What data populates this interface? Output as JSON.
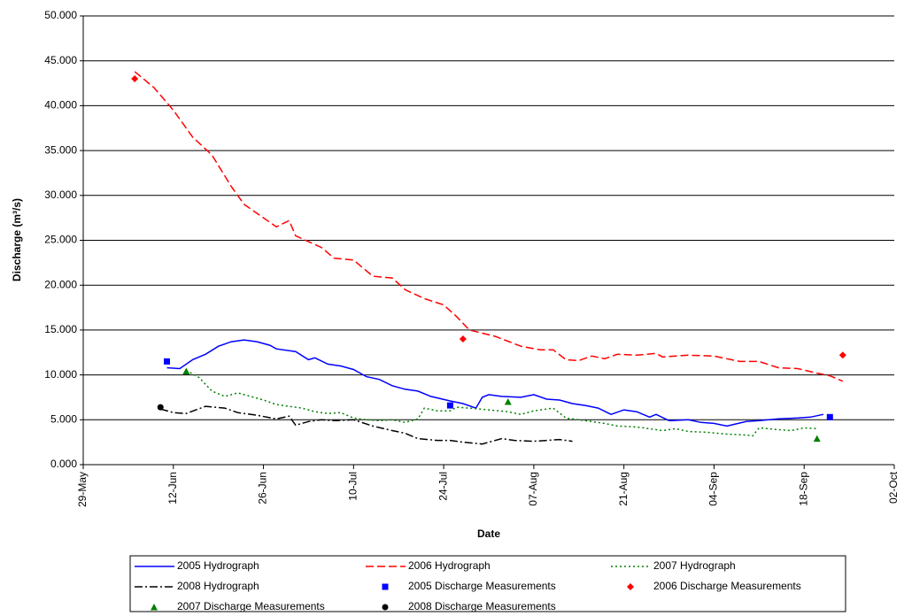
{
  "chart_data": {
    "type": "line",
    "y_label": "Discharge (m³/s)",
    "x_label": "Date",
    "xlim": [
      "29-May",
      "02-Oct"
    ],
    "xticks": [
      "29-May",
      "12-Jun",
      "26-Jun",
      "10-Jul",
      "24-Jul",
      "07-Aug",
      "21-Aug",
      "04-Sep",
      "18-Sep",
      "02-Oct"
    ],
    "ylim": [
      0,
      50
    ],
    "yticks": [
      {
        "value": 0,
        "label": "0.000"
      },
      {
        "value": 5,
        "label": "5.000"
      },
      {
        "value": 10,
        "label": "10.000"
      },
      {
        "value": 15,
        "label": "15.000"
      },
      {
        "value": 20,
        "label": "20.000"
      },
      {
        "value": 25,
        "label": "25.000"
      },
      {
        "value": 30,
        "label": "30.000"
      },
      {
        "value": 35,
        "label": "35.000"
      },
      {
        "value": 40,
        "label": "40.000"
      },
      {
        "value": 45,
        "label": "45.000"
      },
      {
        "value": 50,
        "label": "50.000"
      }
    ],
    "grid": true,
    "legend": "bottom",
    "series": [
      {
        "name": "2005 Hydrograph",
        "color": "#0000ff",
        "style": "solid",
        "x": [
          "11-Jun",
          "13-Jun",
          "15-Jun",
          "16-Jun",
          "17-Jun",
          "19-Jun",
          "21-Jun",
          "23-Jun",
          "25-Jun",
          "27-Jun",
          "28-Jun",
          "01-Jul",
          "03-Jul",
          "04-Jul",
          "06-Jul",
          "08-Jul",
          "10-Jul",
          "12-Jul",
          "14-Jul",
          "16-Jul",
          "18-Jul",
          "20-Jul",
          "22-Jul",
          "25-Jul",
          "27-Jul",
          "29-Jul",
          "30-Jul",
          "31-Jul",
          "02-Aug",
          "05-Aug",
          "07-Aug",
          "09-Aug",
          "11-Aug",
          "13-Aug",
          "15-Aug",
          "17-Aug",
          "19-Aug",
          "21-Aug",
          "23-Aug",
          "25-Aug",
          "26-Aug",
          "28-Aug",
          "31-Aug",
          "02-Sep",
          "04-Sep",
          "06-Sep",
          "09-Sep",
          "11-Sep",
          "14-Sep",
          "17-Sep",
          "19-Sep",
          "21-Sep"
        ],
        "values": [
          10.8,
          10.7,
          11.7,
          12.0,
          12.3,
          13.2,
          13.7,
          13.9,
          13.7,
          13.3,
          12.9,
          12.6,
          11.7,
          11.9,
          11.2,
          11.0,
          10.6,
          9.8,
          9.5,
          8.8,
          8.4,
          8.2,
          7.6,
          7.1,
          6.8,
          6.3,
          7.5,
          7.8,
          7.6,
          7.5,
          7.8,
          7.3,
          7.2,
          6.8,
          6.6,
          6.3,
          5.6,
          6.1,
          5.9,
          5.3,
          5.6,
          4.9,
          5.0,
          4.7,
          4.6,
          4.3,
          4.8,
          4.9,
          5.1,
          5.2,
          5.3,
          5.6
        ]
      },
      {
        "name": "2006 Hydrograph",
        "color": "#ff0000",
        "style": "dashed",
        "x": [
          "06-Jun",
          "09-Jun",
          "12-Jun",
          "13-Jun",
          "15-Jun",
          "18-Jun",
          "21-Jun",
          "23-Jun",
          "26-Jun",
          "28-Jun",
          "30-Jun",
          "01-Jul",
          "05-Jul",
          "07-Jul",
          "10-Jul",
          "13-Jul",
          "16-Jul",
          "18-Jul",
          "21-Jul",
          "24-Jul",
          "26-Jul",
          "28-Jul",
          "01-Aug",
          "05-Aug",
          "08-Aug",
          "10-Aug",
          "12-Aug",
          "14-Aug",
          "16-Aug",
          "18-Aug",
          "20-Aug",
          "23-Aug",
          "26-Aug",
          "27-Aug",
          "31-Aug",
          "04-Sep",
          "08-Sep",
          "11-Sep",
          "14-Sep",
          "17-Sep",
          "20-Sep",
          "22-Sep",
          "24-Sep"
        ],
        "values": [
          43.8,
          42.0,
          39.5,
          38.5,
          36.5,
          34.5,
          31.0,
          29.0,
          27.5,
          26.5,
          27.2,
          25.5,
          24.2,
          23.0,
          22.8,
          21.0,
          20.8,
          19.5,
          18.5,
          17.8,
          16.5,
          15.0,
          14.3,
          13.2,
          12.8,
          12.8,
          11.7,
          11.6,
          12.1,
          11.8,
          12.3,
          12.2,
          12.4,
          12.0,
          12.2,
          12.1,
          11.5,
          11.5,
          10.8,
          10.7,
          10.2,
          9.9,
          9.3
        ]
      },
      {
        "name": "2007 Hydrograph",
        "color": "#008000",
        "style": "dotted",
        "x": [
          "14-Jun",
          "16-Jun",
          "18-Jun",
          "20-Jun",
          "22-Jun",
          "24-Jun",
          "26-Jun",
          "28-Jun",
          "30-Jun",
          "02-Jul",
          "04-Jul",
          "06-Jul",
          "08-Jul",
          "10-Jul",
          "12-Jul",
          "14-Jul",
          "16-Jul",
          "18-Jul",
          "20-Jul",
          "21-Jul",
          "23-Jul",
          "25-Jul",
          "26-Jul",
          "28-Jul",
          "31-Jul",
          "03-Aug",
          "05-Aug",
          "07-Aug",
          "10-Aug",
          "12-Aug",
          "15-Aug",
          "18-Aug",
          "20-Aug",
          "23-Aug",
          "27-Aug",
          "29-Aug",
          "31-Aug",
          "03-Sep",
          "06-Sep",
          "09-Sep",
          "10-Sep",
          "11-Sep",
          "14-Sep",
          "16-Sep",
          "18-Sep",
          "20-Sep"
        ],
        "values": [
          10.5,
          9.7,
          8.2,
          7.6,
          8.0,
          7.6,
          7.2,
          6.7,
          6.5,
          6.3,
          5.9,
          5.7,
          5.8,
          5.2,
          5.0,
          4.9,
          5.0,
          4.7,
          5.1,
          6.3,
          6.0,
          6.0,
          6.4,
          6.3,
          6.1,
          5.9,
          5.6,
          6.0,
          6.3,
          5.2,
          4.9,
          4.6,
          4.3,
          4.2,
          3.8,
          4.0,
          3.7,
          3.6,
          3.4,
          3.3,
          3.2,
          4.1,
          3.9,
          3.8,
          4.1,
          4.0
        ]
      },
      {
        "name": "2008 Hydrograph",
        "color": "#000000",
        "style": "dashdot",
        "x": [
          "10-Jun",
          "12-Jun",
          "14-Jun",
          "17-Jun",
          "20-Jun",
          "22-Jun",
          "25-Jun",
          "28-Jun",
          "30-Jun",
          "01-Jul",
          "03-Jul",
          "05-Jul",
          "07-Jul",
          "10-Jul",
          "13-Jul",
          "16-Jul",
          "18-Jul",
          "20-Jul",
          "23-Jul",
          "25-Jul",
          "27-Jul",
          "30-Jul",
          "02-Aug",
          "04-Aug",
          "07-Aug",
          "09-Aug",
          "11-Aug",
          "13-Aug"
        ],
        "values": [
          6.2,
          5.8,
          5.7,
          6.5,
          6.3,
          5.8,
          5.5,
          5.1,
          5.4,
          4.4,
          4.8,
          5.0,
          4.9,
          5.0,
          4.3,
          3.8,
          3.5,
          2.9,
          2.7,
          2.7,
          2.5,
          2.3,
          2.9,
          2.7,
          2.6,
          2.7,
          2.8,
          2.6
        ]
      },
      {
        "name": "2005 Discharge Measurements",
        "color": "#0000ff",
        "marker": "square",
        "x": [
          "11-Jun",
          "25-Jul",
          "22-Sep"
        ],
        "values": [
          11.5,
          6.6,
          5.3
        ]
      },
      {
        "name": "2006 Discharge Measurements",
        "color": "#ff0000",
        "marker": "diamond",
        "x": [
          "06-Jun",
          "27-Jul",
          "24-Sep"
        ],
        "values": [
          43.0,
          14.0,
          12.2
        ]
      },
      {
        "name": "2007 Discharge Measurements",
        "color": "#008000",
        "marker": "triangle",
        "x": [
          "14-Jun",
          "03-Aug",
          "20-Sep"
        ],
        "values": [
          10.4,
          7.0,
          2.9
        ]
      },
      {
        "name": "2008 Discharge Measurements",
        "color": "#000000",
        "marker": "circle",
        "x": [
          "10-Jun"
        ],
        "values": [
          6.4
        ]
      }
    ]
  }
}
